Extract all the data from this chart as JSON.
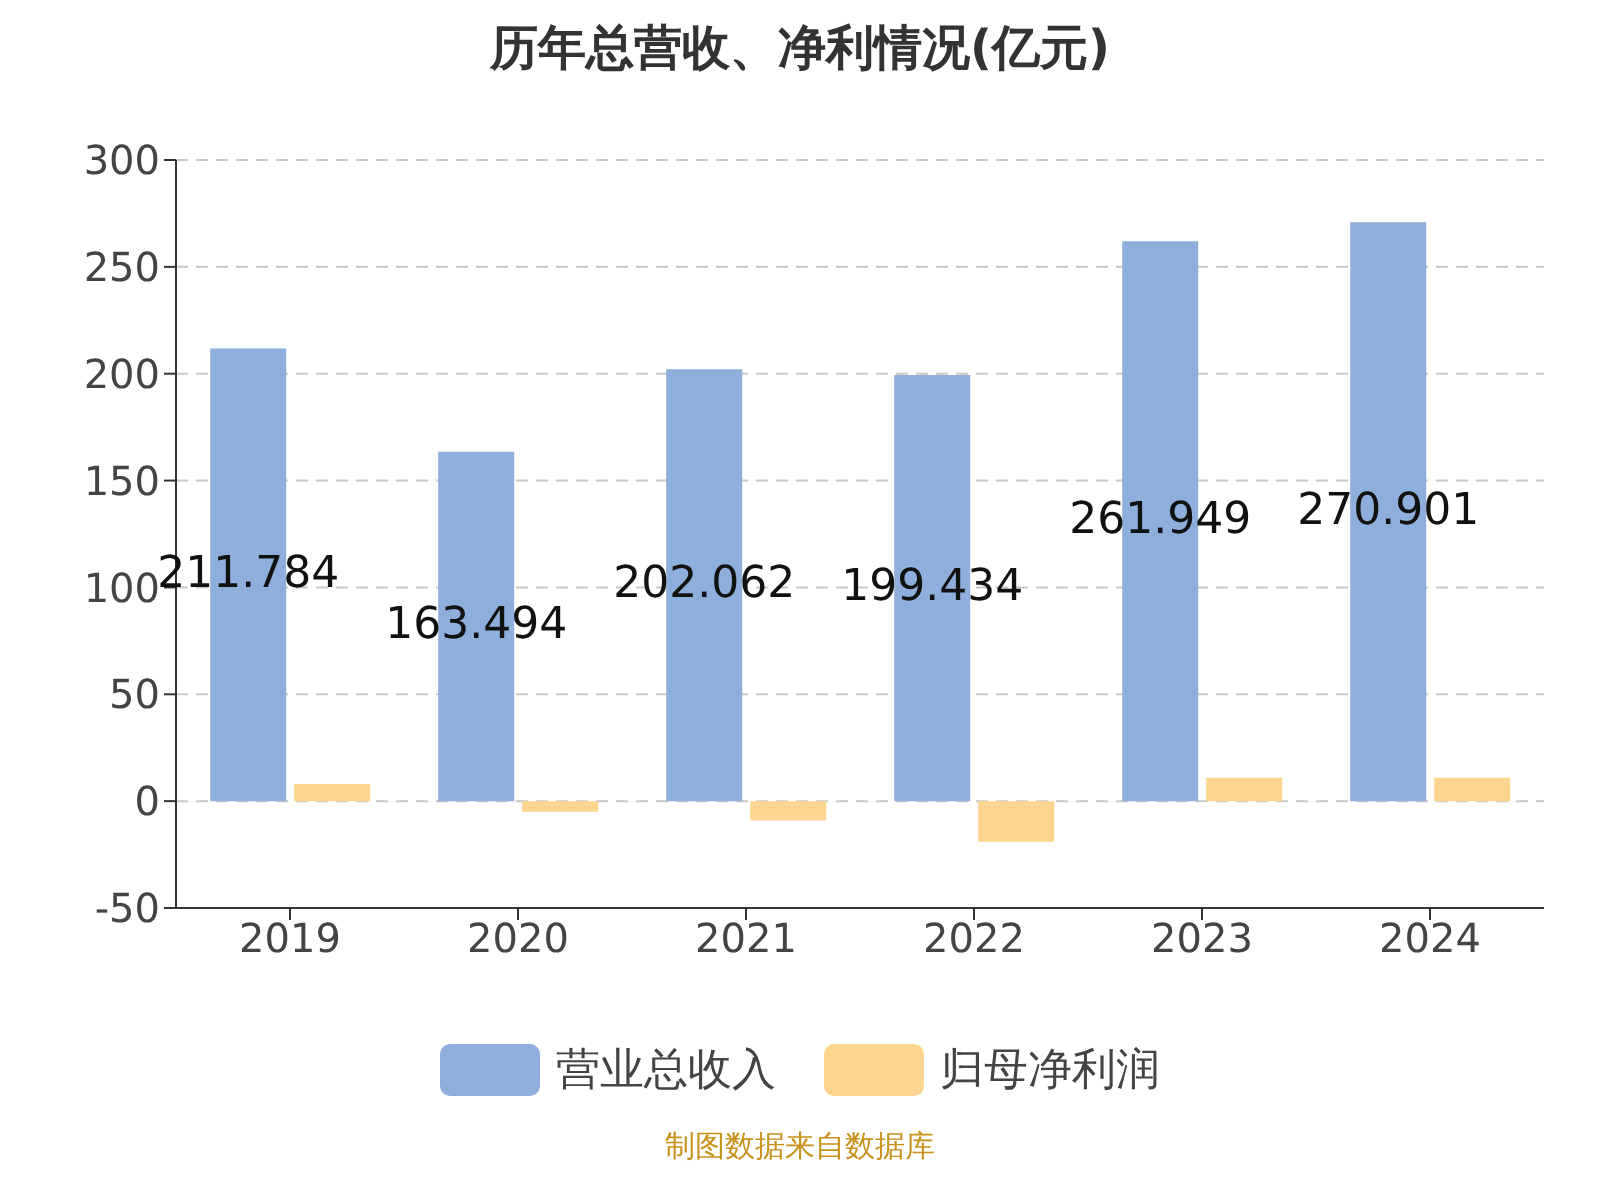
{
  "chart_data": {
    "type": "bar",
    "title": "历年总营收、净利情况(亿元)",
    "categories": [
      "2019",
      "2020",
      "2021",
      "2022",
      "2023",
      "2024"
    ],
    "series": [
      {
        "name": "营业总收入",
        "color": "#8eaedb",
        "values": [
          211.784,
          163.494,
          202.062,
          199.434,
          261.949,
          270.901
        ],
        "value_labels": [
          "211.784",
          "163.494",
          "202.062",
          "199.434",
          "261.949",
          "270.901"
        ]
      },
      {
        "name": "归母净利润",
        "color": "#fdd58f",
        "values": [
          8,
          -5,
          -9,
          -19,
          11,
          11
        ]
      }
    ],
    "ylim": [
      -50,
      300
    ],
    "yticks": [
      -50,
      0,
      50,
      100,
      150,
      200,
      250,
      300
    ],
    "grid": "y",
    "legend": "bottom",
    "annotations": [
      "制图数据来自数据库"
    ]
  }
}
